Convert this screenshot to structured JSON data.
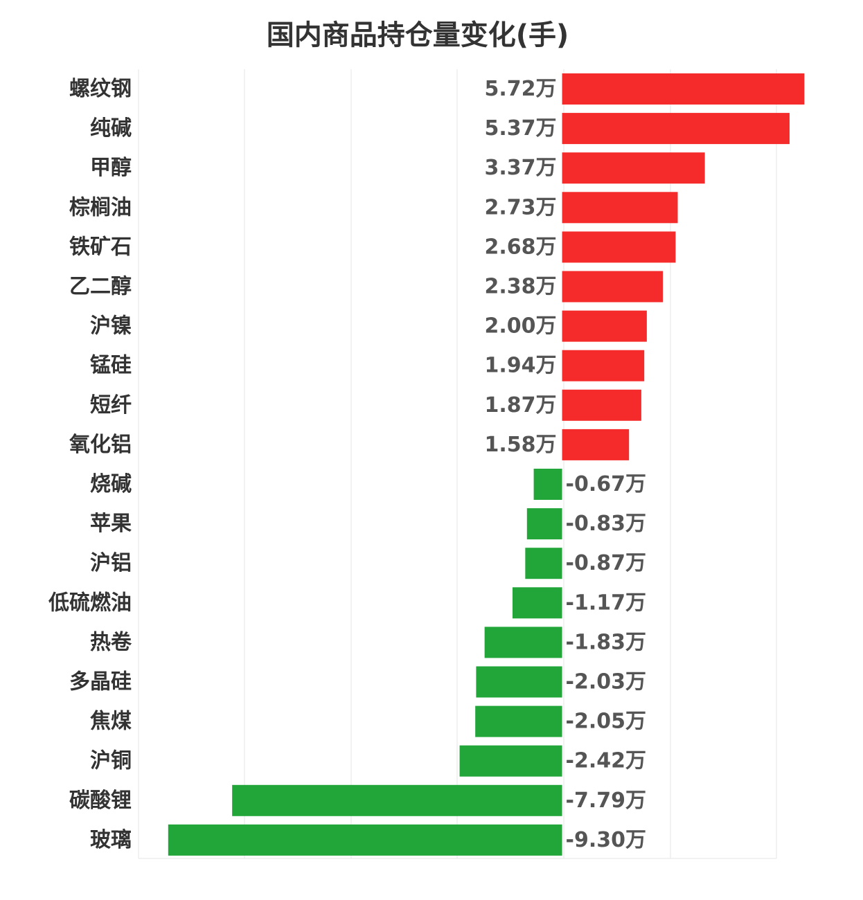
{
  "chart_data": {
    "type": "bar",
    "orientation": "horizontal",
    "title": "国内商品持仓量变化(手)",
    "xlabel": "",
    "ylabel": "",
    "unit_suffix": "万",
    "grid": true,
    "xlim": [
      -10,
      5.06
    ],
    "categories": [
      "螺纹钢",
      "纯碱",
      "甲醇",
      "棕榈油",
      "铁矿石",
      "乙二醇",
      "沪镍",
      "锰硅",
      "短纤",
      "氧化铝",
      "烧碱",
      "苹果",
      "沪铝",
      "低硫燃油",
      "热卷",
      "多晶硅",
      "焦煤",
      "沪铜",
      "碳酸锂",
      "玻璃"
    ],
    "values": [
      5.72,
      5.37,
      3.37,
      2.73,
      2.68,
      2.38,
      2.0,
      1.94,
      1.87,
      1.58,
      -0.67,
      -0.83,
      -0.87,
      -1.17,
      -1.83,
      -2.03,
      -2.05,
      -2.42,
      -7.79,
      -9.3
    ],
    "value_labels": [
      "5.72万",
      "5.37万",
      "3.37万",
      "2.73万",
      "2.68万",
      "2.38万",
      "2.00万",
      "1.94万",
      "1.87万",
      "1.58万",
      "-0.67万",
      "-0.83万",
      "-0.87万",
      "-1.17万",
      "-1.83万",
      "-2.03万",
      "-2.05万",
      "-2.42万",
      "-7.79万",
      "-9.30万"
    ],
    "colors": {
      "positive": "#f52a2a",
      "negative": "#22a63a",
      "grid": "#e6e6e6",
      "category_text": "#333333",
      "value_text": "#555555"
    }
  }
}
